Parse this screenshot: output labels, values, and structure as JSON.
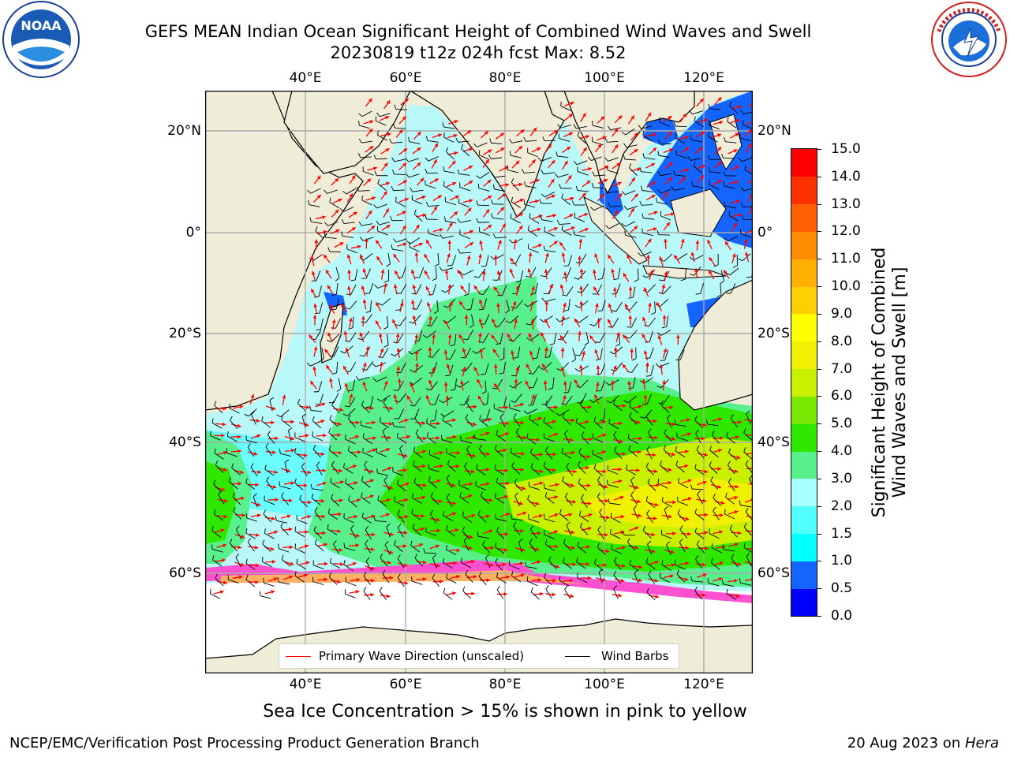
{
  "header": {
    "title_line1": "GEFS MEAN Indian Ocean Significant Height of Combined Wind Waves and Swell",
    "title_line2": "20230819 t12z 024h fcst   Max: 8.52"
  },
  "logos": {
    "noaa": {
      "text": "NOAA",
      "ring_text": "NATIONAL OCEANIC AND ATMOSPHERIC ADMINISTRATION · U.S. DEPARTMENT OF COMMERCE"
    },
    "nws": {
      "ring_text": "NATIONAL WEATHER SERVICE"
    }
  },
  "map": {
    "lon_ticks": [
      "40°E",
      "60°E",
      "80°E",
      "100°E",
      "120°E"
    ],
    "lat_ticks": [
      "20°N",
      "0°",
      "20°S",
      "40°S",
      "60°S"
    ],
    "land_color": "#efecd8",
    "ocean_colors": {
      "light_cyan": "#b8f8f8",
      "cyan": "#52ffff",
      "green_light": "#57f08c",
      "green": "#2ee800",
      "yellow_green": "#c8f000",
      "yellow": "#f0f000",
      "blue": "#1464ff",
      "ice_pink": "#ff50d0",
      "ice_orange": "#ffb060"
    },
    "arrow_color": "#ff0000",
    "barb_color": "#000000"
  },
  "colorbar": {
    "title_line1": "Significant Height of Combined",
    "title_line2": "Wind Waves and Swell [m]",
    "labels": [
      "15.0",
      "14.0",
      "13.0",
      "12.0",
      "11.0",
      "10.0",
      "9.0",
      "8.0",
      "7.0",
      "6.0",
      "5.0",
      "4.0",
      "3.0",
      "2.0",
      "1.5",
      "1.0",
      "0.5",
      "0.0"
    ],
    "colors_bottom_to_top": [
      "#0000ff",
      "#1464ff",
      "#00ffff",
      "#52ffff",
      "#a8ffff",
      "#57f08c",
      "#2ee800",
      "#7ae800",
      "#c8f000",
      "#f0f000",
      "#ffff00",
      "#ffd000",
      "#ffb000",
      "#ff8c00",
      "#ff6000",
      "#ff3000",
      "#ff0000"
    ]
  },
  "legend": {
    "wave_label": "Primary Wave Direction (unscaled)",
    "barb_label": "Wind Barbs"
  },
  "subtitle": "Sea Ice Concentration > 15% is shown in pink to yellow",
  "footer": {
    "left": "NCEP/EMC/Verification Post Processing Product Generation Branch",
    "right_date": "20 Aug 2023 on ",
    "right_host": "Hera"
  }
}
